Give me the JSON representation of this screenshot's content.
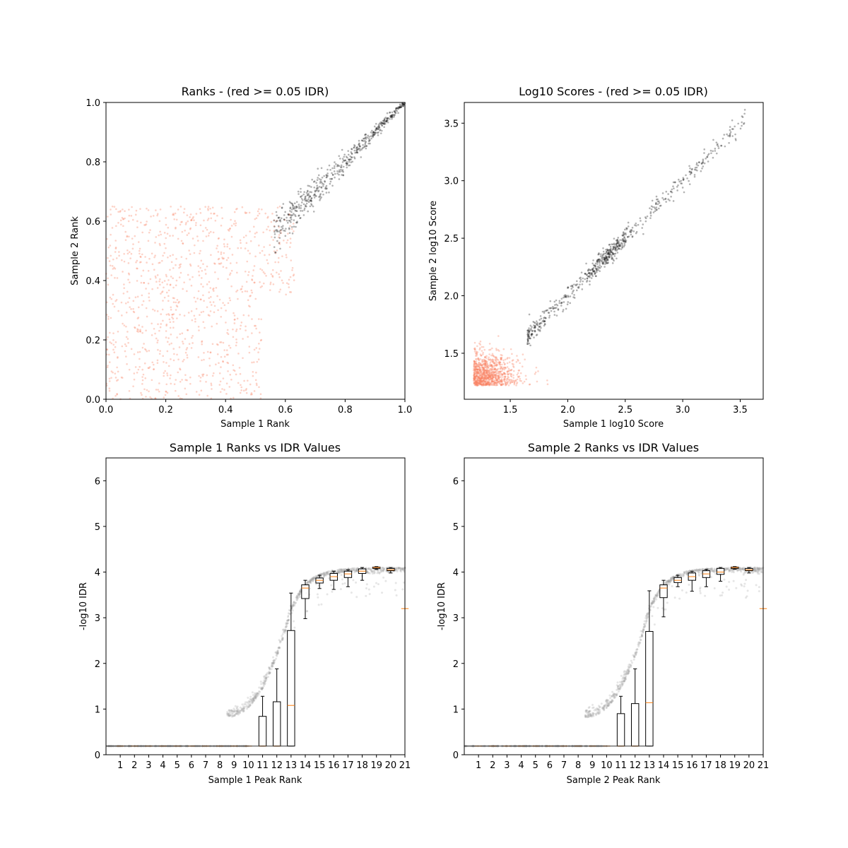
{
  "chart_data": [
    {
      "type": "scatter",
      "title": "Ranks - (red >= 0.05 IDR)",
      "xlabel": "Sample 1 Rank",
      "ylabel": "Sample 2 Rank",
      "xlim": [
        0.0,
        1.0
      ],
      "ylim": [
        0.0,
        1.0
      ],
      "x_ticks": [
        "0.0",
        "0.2",
        "0.4",
        "0.6",
        "0.8",
        "1.0"
      ],
      "y_ticks": [
        "0.0",
        "0.2",
        "0.4",
        "0.6",
        "0.8",
        "1.0"
      ],
      "grid": false,
      "colors": {
        "pass": "#000000",
        "fail": "#fa8060"
      },
      "series": [
        {
          "group": "idr_below_0.05",
          "x_range": [
            0.56,
            1.0
          ],
          "y_range": [
            0.56,
            1.0
          ],
          "pattern": "diagonal band"
        },
        {
          "group": "idr_at_or_above_0.05",
          "x_range": [
            0.0,
            0.63
          ],
          "y_range": [
            0.0,
            0.65
          ],
          "pattern": "uniform spread"
        }
      ]
    },
    {
      "type": "scatter",
      "title": "Log10 Scores - (red >= 0.05 IDR)",
      "xlabel": "Sample 1 log10 Score",
      "ylabel": "Sample 2 log10 Score",
      "xlim": [
        1.1,
        3.7
      ],
      "ylim": [
        1.1,
        3.68
      ],
      "x_ticks": [
        "1.5",
        "2.0",
        "2.5",
        "3.0",
        "3.5"
      ],
      "y_ticks": [
        "1.5",
        "2.0",
        "2.5",
        "3.0",
        "3.5"
      ],
      "grid": false,
      "colors": {
        "pass": "#000000",
        "fail": "#fa8060"
      },
      "series": [
        {
          "group": "idr_below_0.05",
          "x_range": [
            1.6,
            3.57
          ],
          "y_range": [
            1.6,
            3.57
          ],
          "pattern": "diagonal band"
        },
        {
          "group": "idr_at_or_above_0.05",
          "x_range": [
            1.17,
            1.9
          ],
          "y_range": [
            1.21,
            1.85
          ],
          "pattern": "dense cluster near lower-left"
        }
      ]
    },
    {
      "type": "box",
      "title": "Sample 1 Ranks vs IDR Values",
      "xlabel": "Sample 1 Peak Rank",
      "ylabel": "-log10 IDR",
      "xlim": [
        0,
        21
      ],
      "ylim": [
        0,
        6.5
      ],
      "x_ticks": [
        "1",
        "2",
        "3",
        "4",
        "5",
        "6",
        "7",
        "8",
        "9",
        "10",
        "11",
        "12",
        "13",
        "14",
        "15",
        "16",
        "17",
        "18",
        "19",
        "20",
        "21"
      ],
      "y_ticks": [
        "0",
        "1",
        "2",
        "3",
        "4",
        "5",
        "6"
      ],
      "colors": {
        "box": "#000000",
        "median": "#ff7f0e",
        "points": "#9a9a9a"
      },
      "boxes": [
        {
          "pos": 1,
          "q1": 0.19,
          "median": 0.19,
          "q3": 0.19,
          "whislo": 0.19,
          "whishi": 0.19
        },
        {
          "pos": 2,
          "q1": 0.19,
          "median": 0.19,
          "q3": 0.19,
          "whislo": 0.19,
          "whishi": 0.19
        },
        {
          "pos": 3,
          "q1": 0.19,
          "median": 0.19,
          "q3": 0.19,
          "whislo": 0.19,
          "whishi": 0.19
        },
        {
          "pos": 4,
          "q1": 0.19,
          "median": 0.19,
          "q3": 0.19,
          "whislo": 0.19,
          "whishi": 0.19
        },
        {
          "pos": 5,
          "q1": 0.19,
          "median": 0.19,
          "q3": 0.19,
          "whislo": 0.19,
          "whishi": 0.19
        },
        {
          "pos": 6,
          "q1": 0.19,
          "median": 0.19,
          "q3": 0.19,
          "whislo": 0.19,
          "whishi": 0.19
        },
        {
          "pos": 7,
          "q1": 0.19,
          "median": 0.19,
          "q3": 0.19,
          "whislo": 0.19,
          "whishi": 0.19
        },
        {
          "pos": 8,
          "q1": 0.19,
          "median": 0.19,
          "q3": 0.19,
          "whislo": 0.19,
          "whishi": 0.19
        },
        {
          "pos": 9,
          "q1": 0.19,
          "median": 0.19,
          "q3": 0.19,
          "whislo": 0.19,
          "whishi": 0.19
        },
        {
          "pos": 10,
          "q1": 0.19,
          "median": 0.19,
          "q3": 0.19,
          "whislo": 0.19,
          "whishi": 0.19
        },
        {
          "pos": 11,
          "q1": 0.19,
          "median": 0.19,
          "q3": 0.84,
          "whislo": 0.19,
          "whishi": 1.28
        },
        {
          "pos": 12,
          "q1": 0.19,
          "median": 0.19,
          "q3": 1.16,
          "whislo": 0.19,
          "whishi": 1.88
        },
        {
          "pos": 13,
          "q1": 0.19,
          "median": 1.08,
          "q3": 2.72,
          "whislo": 0.19,
          "whishi": 3.54
        },
        {
          "pos": 14,
          "q1": 3.42,
          "median": 3.65,
          "q3": 3.72,
          "whislo": 2.98,
          "whishi": 3.82
        },
        {
          "pos": 15,
          "q1": 3.76,
          "median": 3.82,
          "q3": 3.87,
          "whislo": 3.64,
          "whishi": 3.93
        },
        {
          "pos": 16,
          "q1": 3.82,
          "median": 3.9,
          "q3": 3.97,
          "whislo": 3.62,
          "whishi": 4.02
        },
        {
          "pos": 17,
          "q1": 3.88,
          "median": 3.96,
          "q3": 4.02,
          "whislo": 3.68,
          "whishi": 4.05
        },
        {
          "pos": 18,
          "q1": 3.97,
          "median": 4.02,
          "q3": 4.07,
          "whislo": 3.82,
          "whishi": 4.1
        },
        {
          "pos": 19,
          "q1": 4.08,
          "median": 4.1,
          "q3": 4.11,
          "whislo": 4.06,
          "whishi": 4.12
        },
        {
          "pos": 20,
          "q1": 4.03,
          "median": 4.05,
          "q3": 4.08,
          "whislo": 3.98,
          "whishi": 4.1
        },
        {
          "pos": 21,
          "q1": 3.2,
          "median": 3.2,
          "q3": 3.2,
          "whislo": 3.2,
          "whishi": 3.2
        }
      ]
    },
    {
      "type": "box",
      "title": "Sample 2 Ranks vs IDR Values",
      "xlabel": "Sample 2 Peak Rank",
      "ylabel": "-log10 IDR",
      "xlim": [
        0,
        21
      ],
      "ylim": [
        0,
        6.5
      ],
      "x_ticks": [
        "1",
        "2",
        "3",
        "4",
        "5",
        "6",
        "7",
        "8",
        "9",
        "10",
        "11",
        "12",
        "13",
        "14",
        "15",
        "16",
        "17",
        "18",
        "19",
        "20",
        "21"
      ],
      "y_ticks": [
        "0",
        "1",
        "2",
        "3",
        "4",
        "5",
        "6"
      ],
      "colors": {
        "box": "#000000",
        "median": "#ff7f0e",
        "points": "#9a9a9a"
      },
      "boxes": [
        {
          "pos": 1,
          "q1": 0.19,
          "median": 0.19,
          "q3": 0.19,
          "whislo": 0.19,
          "whishi": 0.19
        },
        {
          "pos": 2,
          "q1": 0.19,
          "median": 0.19,
          "q3": 0.19,
          "whislo": 0.19,
          "whishi": 0.19
        },
        {
          "pos": 3,
          "q1": 0.19,
          "median": 0.19,
          "q3": 0.19,
          "whislo": 0.19,
          "whishi": 0.19
        },
        {
          "pos": 4,
          "q1": 0.19,
          "median": 0.19,
          "q3": 0.19,
          "whislo": 0.19,
          "whishi": 0.19
        },
        {
          "pos": 5,
          "q1": 0.19,
          "median": 0.19,
          "q3": 0.19,
          "whislo": 0.19,
          "whishi": 0.19
        },
        {
          "pos": 6,
          "q1": 0.19,
          "median": 0.19,
          "q3": 0.19,
          "whislo": 0.19,
          "whishi": 0.19
        },
        {
          "pos": 7,
          "q1": 0.19,
          "median": 0.19,
          "q3": 0.19,
          "whislo": 0.19,
          "whishi": 0.19
        },
        {
          "pos": 8,
          "q1": 0.19,
          "median": 0.19,
          "q3": 0.19,
          "whislo": 0.19,
          "whishi": 0.19
        },
        {
          "pos": 9,
          "q1": 0.19,
          "median": 0.19,
          "q3": 0.19,
          "whislo": 0.19,
          "whishi": 0.19
        },
        {
          "pos": 10,
          "q1": 0.19,
          "median": 0.19,
          "q3": 0.19,
          "whislo": 0.19,
          "whishi": 0.19
        },
        {
          "pos": 11,
          "q1": 0.19,
          "median": 0.19,
          "q3": 0.9,
          "whislo": 0.19,
          "whishi": 1.28
        },
        {
          "pos": 12,
          "q1": 0.19,
          "median": 0.19,
          "q3": 1.12,
          "whislo": 0.19,
          "whishi": 1.88
        },
        {
          "pos": 13,
          "q1": 0.19,
          "median": 1.14,
          "q3": 2.7,
          "whislo": 0.19,
          "whishi": 3.59
        },
        {
          "pos": 14,
          "q1": 3.44,
          "median": 3.65,
          "q3": 3.72,
          "whislo": 3.02,
          "whishi": 3.82
        },
        {
          "pos": 15,
          "q1": 3.77,
          "median": 3.82,
          "q3": 3.88,
          "whislo": 3.68,
          "whishi": 3.93
        },
        {
          "pos": 16,
          "q1": 3.82,
          "median": 3.9,
          "q3": 3.98,
          "whislo": 3.58,
          "whishi": 4.02
        },
        {
          "pos": 17,
          "q1": 3.88,
          "median": 3.96,
          "q3": 4.03,
          "whislo": 3.68,
          "whishi": 4.06
        },
        {
          "pos": 18,
          "q1": 3.95,
          "median": 4.0,
          "q3": 4.08,
          "whislo": 3.8,
          "whishi": 4.1
        },
        {
          "pos": 19,
          "q1": 4.08,
          "median": 4.1,
          "q3": 4.11,
          "whislo": 4.06,
          "whishi": 4.12
        },
        {
          "pos": 20,
          "q1": 4.03,
          "median": 4.05,
          "q3": 4.08,
          "whislo": 3.98,
          "whishi": 4.1
        },
        {
          "pos": 21,
          "q1": 3.2,
          "median": 3.2,
          "q3": 3.2,
          "whislo": 3.2,
          "whishi": 3.2
        }
      ]
    }
  ]
}
